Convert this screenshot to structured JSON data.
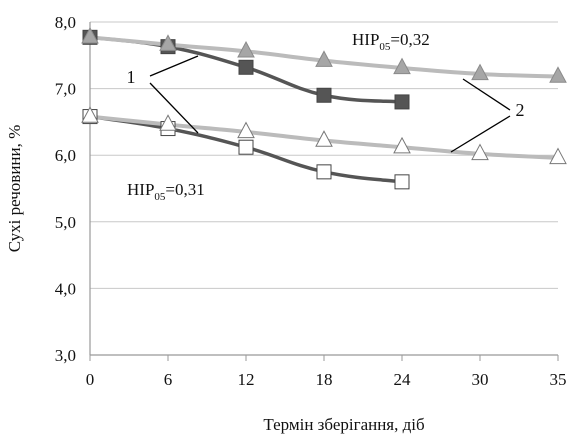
{
  "chart_data": {
    "type": "line",
    "xlabel": "Термін зберігання, діб",
    "ylabel": "Сухі речовини, %",
    "x_categories": [
      "0",
      "6",
      "12",
      "18",
      "24",
      "30",
      "35"
    ],
    "ylim": [
      3.0,
      8.0
    ],
    "yticks": [
      "3,0",
      "4,0",
      "5,0",
      "6,0",
      "7,0",
      "8,0"
    ],
    "grid": "horizontal",
    "series": [
      {
        "marker": "filled-square",
        "color": "#555555",
        "x_index": [
          0,
          1,
          2,
          3,
          4
        ],
        "values": [
          7.77,
          7.63,
          7.32,
          6.9,
          6.8
        ]
      },
      {
        "marker": "filled-triangle",
        "color": "#bbbbbb",
        "x_index": [
          0,
          1,
          2,
          3,
          4,
          5,
          6
        ],
        "values": [
          7.77,
          7.66,
          7.56,
          7.42,
          7.31,
          7.22,
          7.18
        ]
      },
      {
        "marker": "open-square",
        "color": "#555555",
        "x_index": [
          0,
          1,
          2,
          3,
          4
        ],
        "values": [
          6.58,
          6.4,
          6.12,
          5.75,
          5.6
        ]
      },
      {
        "marker": "open-triangle",
        "color": "#bbbbbb",
        "x_index": [
          0,
          1,
          2,
          3,
          4,
          5,
          6
        ],
        "values": [
          6.58,
          6.46,
          6.35,
          6.22,
          6.12,
          6.02,
          5.96
        ]
      }
    ],
    "annotations": [
      {
        "name": "nir-upper",
        "prefix": "НІР",
        "sub": "05",
        "suffix": "=0,32"
      },
      {
        "name": "nir-lower",
        "prefix": "НІР",
        "sub": "05",
        "suffix": "=0,31"
      },
      {
        "name": "callout-1",
        "text": "1"
      },
      {
        "name": "callout-2",
        "text": "2"
      }
    ]
  }
}
